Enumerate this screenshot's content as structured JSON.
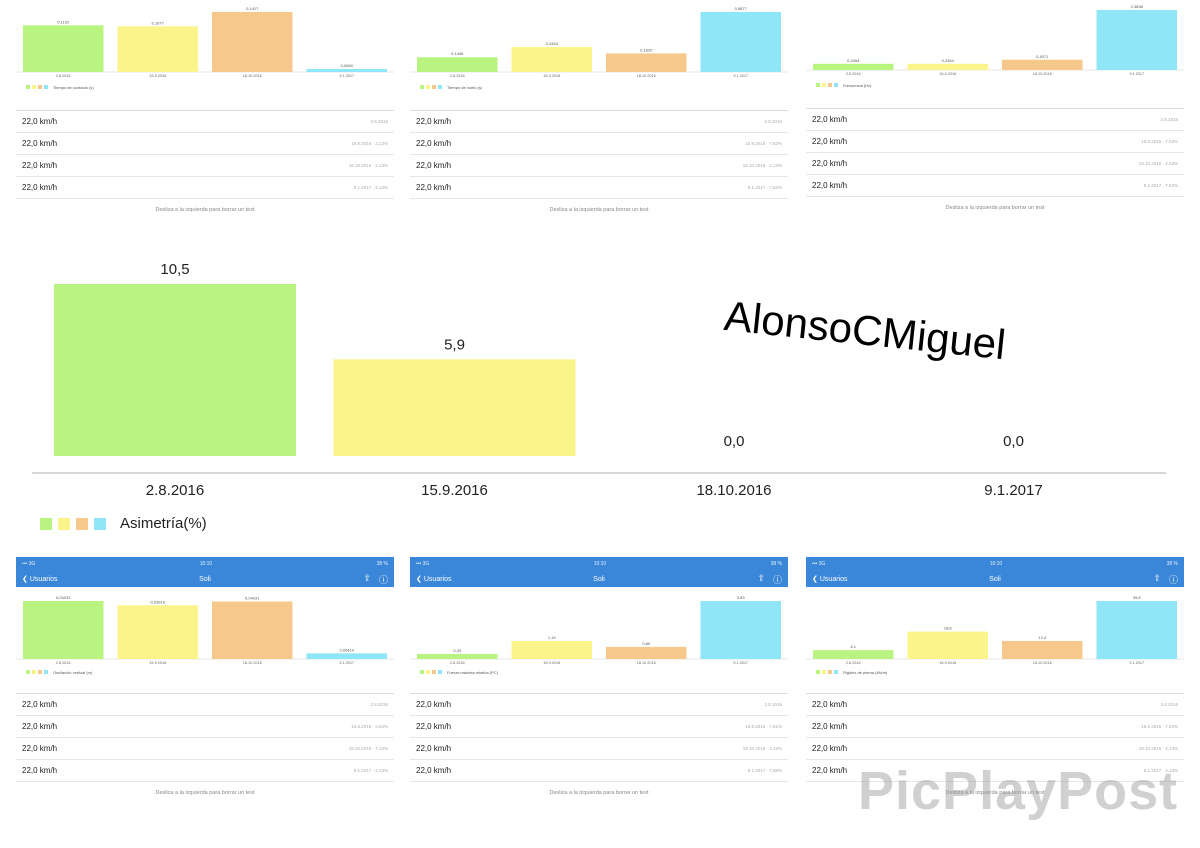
{
  "colors": {
    "green": "#b8f47f",
    "yellow": "#fbf48b",
    "orange": "#f7c88c",
    "cyan": "#8ee6f7",
    "nav": "#3a86d8"
  },
  "hint_text": "Desliza a la izquierda para borrar un test",
  "panels_top": [
    {
      "chart_data": {
        "type": "bar",
        "categories": [
          "2.8.2016",
          "15.9.2016",
          "18.10.2016",
          "9.1.2017"
        ],
        "values": [
          0.1102,
          0.1077,
          0.1417,
          0.006
        ],
        "labels": [
          "0,1102",
          "0,1077",
          "0,1417",
          "0,0060"
        ],
        "legend": "Tiempo de contacto (s)"
      },
      "rows": [
        {
          "speed": "22,0 km/h",
          "meta": "2.8.2016"
        },
        {
          "speed": "22,0 km/h",
          "meta": "15.9.2016 · 2,13%"
        },
        {
          "speed": "22,0 km/h",
          "meta": "18.10.2016 · 2,13%"
        },
        {
          "speed": "22,0 km/h",
          "meta": "9.1.2017 · 2,13%"
        }
      ]
    },
    {
      "chart_data": {
        "type": "bar",
        "categories": [
          "2.8.2016",
          "15.9.2016",
          "18.10.2016",
          "9.1.2017"
        ],
        "values": [
          0.1445,
          0.2444,
          0.182,
          0.5877
        ],
        "labels": [
          "0,1445",
          "0,2444",
          "0,1820",
          "0,5877"
        ],
        "legend": "Tiempo de vuelo (s)"
      },
      "rows": [
        {
          "speed": "22,0 km/h",
          "meta": "2.8.2016"
        },
        {
          "speed": "22,0 km/h",
          "meta": "15.9.2016 · 7,53%"
        },
        {
          "speed": "22,0 km/h",
          "meta": "18.10.2016 · 2,13%"
        },
        {
          "speed": "22,0 km/h",
          "meta": "9.1.2017 · 7,53%"
        }
      ]
    },
    {
      "chart_data": {
        "type": "bar",
        "categories": [
          "2.8.2016",
          "15.9.2016",
          "18.10.2016",
          "9.1.2017"
        ],
        "values": [
          0.2454,
          0.2454,
          0.4071,
          2.3838
        ],
        "labels": [
          "0,2454",
          "0,2454",
          "0,4071",
          "2,3838"
        ],
        "legend": "Frecuencia (Hz)"
      },
      "rows": [
        {
          "speed": "22,0 km/h",
          "meta": "2.8.2016"
        },
        {
          "speed": "22,0 km/h",
          "meta": "15.9.2016 · 7,53%"
        },
        {
          "speed": "22,0 km/h",
          "meta": "18.10.2016 · 2,53%"
        },
        {
          "speed": "22,0 km/h",
          "meta": "9.1.2017 · 7,53%"
        }
      ]
    }
  ],
  "big_chart": {
    "chart_data": {
      "type": "bar",
      "categories": [
        "2.8.2016",
        "15.9.2016",
        "18.10.2016",
        "9.1.2017"
      ],
      "values": [
        10.5,
        5.9,
        0.0,
        0.0
      ],
      "labels": [
        "10,5",
        "5,9",
        "0,0",
        "0,0"
      ],
      "legend": "Asimetría(%)"
    }
  },
  "panels_bottom": [
    {
      "status": {
        "left": "••• 3G",
        "center": "10:10",
        "right": "38 %"
      },
      "nav": {
        "back": "Usuarios",
        "title": "Soli"
      },
      "chart_data": {
        "type": "bar",
        "categories": [
          "2.8.2016",
          "15.9.2016",
          "18.10.2016",
          "9.1.2017"
        ],
        "values": [
          0.0423,
          0.0392,
          0.0419,
          0.0041
        ],
        "labels": [
          "0,04233",
          "0,03916",
          "0,04191",
          "0,00414"
        ],
        "legend": "Oscilación vertical (m)"
      },
      "rows": [
        {
          "speed": "22,0 km/h",
          "meta": "2.8.2016"
        },
        {
          "speed": "22,0 km/h",
          "meta": "15.9.2016 · 3,64%"
        },
        {
          "speed": "22,0 km/h",
          "meta": "18.10.2016 · 7,13%"
        },
        {
          "speed": "22,0 km/h",
          "meta": "9.1.2017 · 2,13%"
        }
      ]
    },
    {
      "status": {
        "left": "••• 3G",
        "center": "10:10",
        "right": "38 %"
      },
      "nav": {
        "back": "Usuarios",
        "title": "Soli"
      },
      "chart_data": {
        "type": "bar",
        "categories": [
          "2.8.2016",
          "15.9.2016",
          "18.10.2016",
          "9.1.2017"
        ],
        "values": [
          0.33,
          1.19,
          0.8,
          3.83
        ],
        "labels": [
          "0,33",
          "1,19",
          "0,80",
          "3,83"
        ],
        "legend": "Fuerza máxima relativa (PC)"
      },
      "rows": [
        {
          "speed": "22,0 km/h",
          "meta": "2.8.2016"
        },
        {
          "speed": "22,0 km/h",
          "meta": "15.9.2016 · 7,61%"
        },
        {
          "speed": "22,0 km/h",
          "meta": "18.10.2016 · 4,13%"
        },
        {
          "speed": "22,0 km/h",
          "meta": "9.1.2017 · 7,88%"
        }
      ]
    },
    {
      "status": {
        "left": "••• 3G",
        "center": "10:10",
        "right": "38 %"
      },
      "nav": {
        "back": "Usuarios",
        "title": "Soli"
      },
      "chart_data": {
        "type": "bar",
        "categories": [
          "2.8.2016",
          "15.9.2016",
          "18.10.2016",
          "9.1.2017"
        ],
        "values": [
          6.1,
          18.8,
          12.4,
          39.8
        ],
        "labels": [
          "6,1",
          "18,8",
          "12,4",
          "39,8"
        ],
        "legend": "Rigidez de pierna (kN/m)"
      },
      "rows": [
        {
          "speed": "22,0 km/h",
          "meta": "2.8.2016"
        },
        {
          "speed": "22,0 km/h",
          "meta": "15.9.2016 · 7,53%"
        },
        {
          "speed": "22,0 km/h",
          "meta": "18.10.2016 · 2,13%"
        },
        {
          "speed": "22,0 km/h",
          "meta": "9.1.2017 · 2,13%"
        }
      ]
    }
  ],
  "watermark_name": "AlonsoCMiguel",
  "watermark_brand": "PicPlayPost"
}
